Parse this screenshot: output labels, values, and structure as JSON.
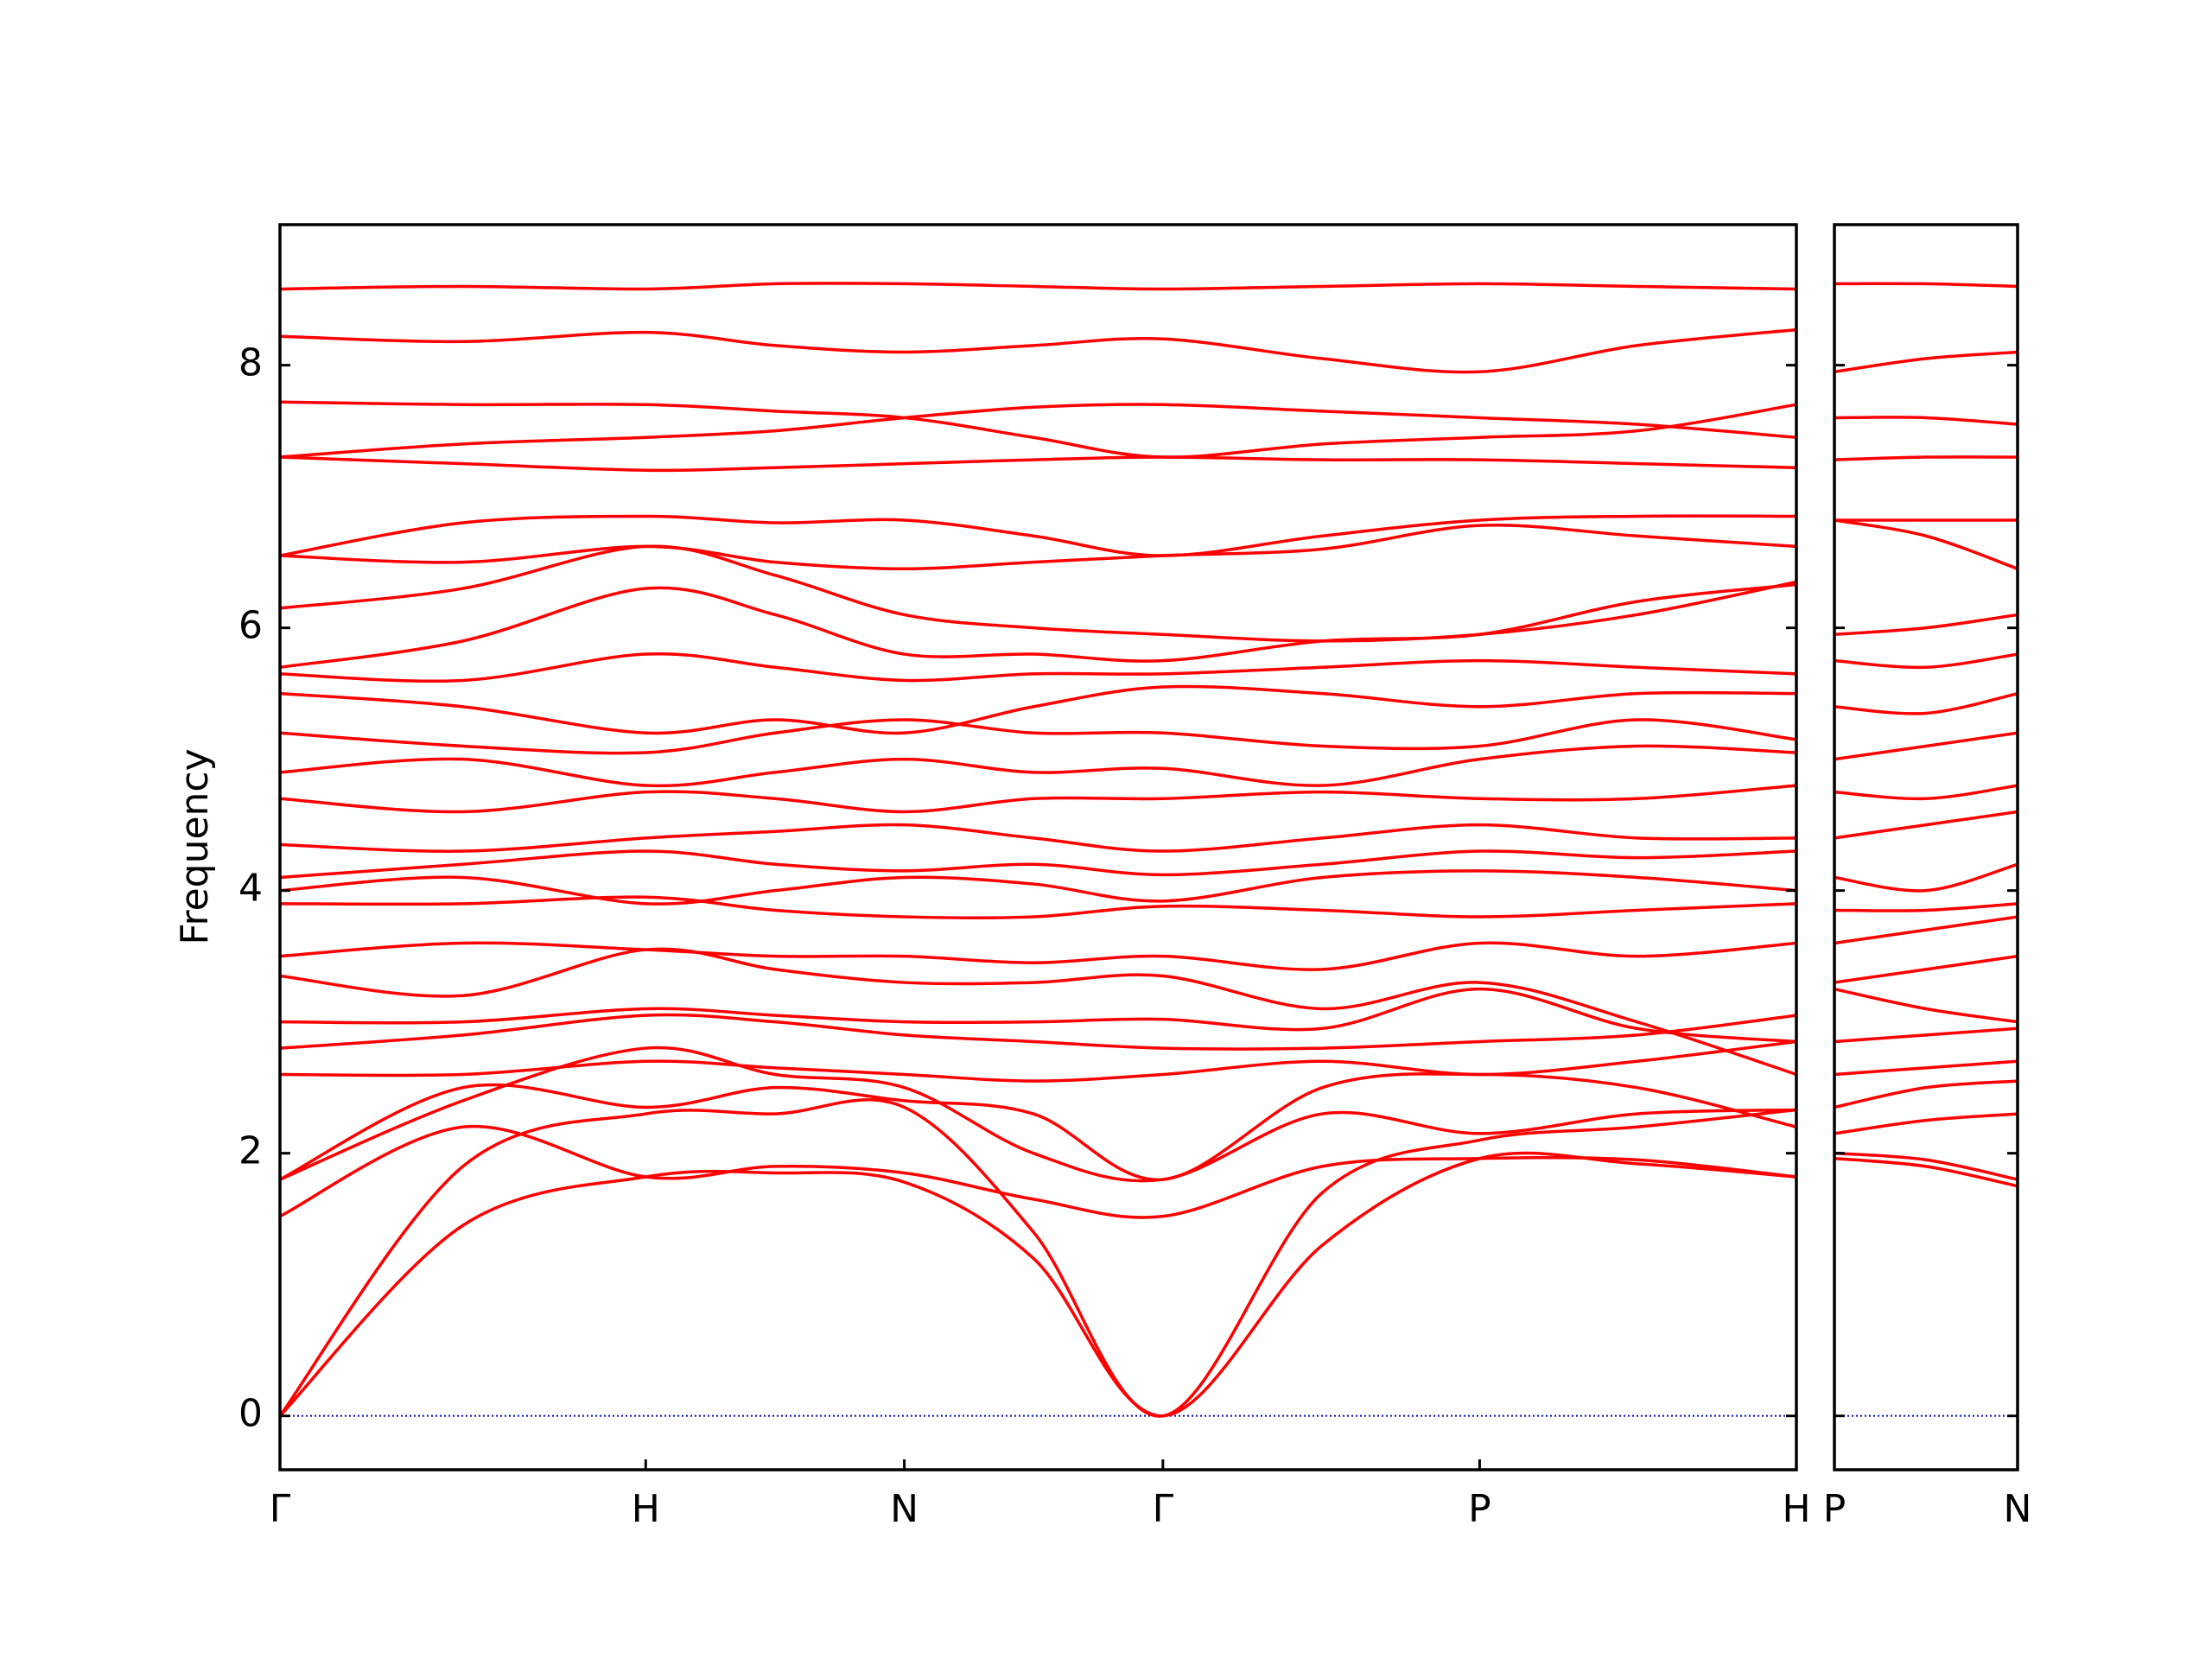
{
  "chart_data": [
    {
      "type": "line",
      "y_label": "Frequency",
      "color": "#ff0000",
      "x": [
        0,
        0.5,
        1,
        1.354,
        1.707,
        2.06,
        2.414,
        2.85,
        3.28,
        3.71,
        4.146
      ],
      "xlim": [
        0,
        4.146
      ],
      "ylim": [
        -0.41,
        9.07
      ],
      "yticks": [
        0,
        2,
        4,
        6,
        8
      ],
      "xticks": [
        {
          "value": 0,
          "label": "Γ"
        },
        {
          "value": 1,
          "label": "H"
        },
        {
          "value": 1.707,
          "label": "N"
        },
        {
          "value": 2.414,
          "label": "Γ"
        },
        {
          "value": 3.28,
          "label": "P"
        },
        {
          "value": 4.146,
          "label": "H"
        }
      ],
      "series": [
        {
          "values": [
            0,
            1.45,
            1.82,
            1.85,
            1.78,
            1.2,
            0,
            1.3,
            1.96,
            1.92,
            1.82
          ]
        },
        {
          "values": [
            0,
            1.9,
            2.3,
            2.3,
            2.35,
            1.4,
            0,
            1.7,
            2.1,
            2.2,
            2.33
          ]
        },
        {
          "values": [
            1.52,
            2.2,
            1.82,
            1.9,
            1.85,
            1.65,
            1.52,
            1.9,
            1.96,
            1.95,
            1.82
          ]
        },
        {
          "values": [
            1.8,
            2.4,
            2.8,
            2.6,
            2.5,
            2.0,
            1.8,
            2.3,
            2.15,
            2.3,
            2.33
          ]
        },
        {
          "values": [
            1.8,
            2.5,
            2.35,
            2.5,
            2.4,
            2.3,
            1.8,
            2.5,
            2.6,
            2.5,
            2.2
          ]
        },
        {
          "values": [
            2.6,
            2.6,
            2.7,
            2.65,
            2.6,
            2.55,
            2.6,
            2.7,
            2.6,
            2.7,
            2.85
          ]
        },
        {
          "values": [
            2.8,
            2.9,
            3.05,
            3.0,
            2.9,
            2.85,
            2.8,
            2.8,
            2.85,
            2.9,
            3.05
          ]
        },
        {
          "values": [
            3.0,
            3.0,
            3.1,
            3.05,
            3.0,
            3.0,
            3.02,
            2.95,
            3.25,
            2.95,
            2.85
          ]
        },
        {
          "values": [
            3.35,
            3.2,
            3.55,
            3.4,
            3.3,
            3.3,
            3.35,
            3.1,
            3.3,
            3.0,
            2.6
          ]
        },
        {
          "values": [
            3.5,
            3.6,
            3.55,
            3.5,
            3.5,
            3.45,
            3.5,
            3.4,
            3.6,
            3.5,
            3.6
          ]
        },
        {
          "values": [
            3.9,
            3.9,
            3.95,
            3.85,
            3.8,
            3.8,
            3.88,
            3.85,
            3.8,
            3.85,
            3.9
          ]
        },
        {
          "values": [
            4.0,
            4.1,
            3.9,
            4.0,
            4.1,
            4.05,
            3.92,
            4.1,
            4.15,
            4.1,
            4.0
          ]
        },
        {
          "values": [
            4.1,
            4.2,
            4.3,
            4.2,
            4.15,
            4.2,
            4.12,
            4.2,
            4.3,
            4.25,
            4.3
          ]
        },
        {
          "values": [
            4.35,
            4.3,
            4.4,
            4.45,
            4.5,
            4.4,
            4.3,
            4.4,
            4.5,
            4.4,
            4.4
          ]
        },
        {
          "values": [
            4.7,
            4.6,
            4.75,
            4.7,
            4.6,
            4.7,
            4.7,
            4.75,
            4.7,
            4.7,
            4.8
          ]
        },
        {
          "values": [
            4.9,
            5.0,
            4.8,
            4.9,
            5.0,
            4.9,
            4.93,
            4.8,
            5.0,
            5.1,
            5.05
          ]
        },
        {
          "values": [
            5.2,
            5.1,
            5.05,
            5.2,
            5.3,
            5.2,
            5.2,
            5.1,
            5.1,
            5.3,
            5.15
          ]
        },
        {
          "values": [
            5.5,
            5.4,
            5.2,
            5.3,
            5.2,
            5.4,
            5.55,
            5.5,
            5.4,
            5.5,
            5.5
          ]
        },
        {
          "values": [
            5.65,
            5.6,
            5.8,
            5.7,
            5.6,
            5.65,
            5.65,
            5.7,
            5.75,
            5.7,
            5.65
          ]
        },
        {
          "values": [
            5.7,
            5.9,
            6.3,
            6.1,
            5.8,
            5.8,
            5.75,
            5.9,
            5.95,
            6.2,
            6.33
          ]
        },
        {
          "values": [
            6.15,
            6.3,
            6.62,
            6.4,
            6.1,
            6.0,
            5.95,
            5.9,
            5.95,
            6.1,
            6.35
          ]
        },
        {
          "values": [
            6.55,
            6.5,
            6.62,
            6.5,
            6.45,
            6.5,
            6.55,
            6.6,
            6.78,
            6.7,
            6.62
          ]
        },
        {
          "values": [
            6.55,
            6.8,
            6.85,
            6.8,
            6.82,
            6.7,
            6.55,
            6.7,
            6.82,
            6.85,
            6.85
          ]
        },
        {
          "values": [
            7.3,
            7.25,
            7.2,
            7.22,
            7.25,
            7.28,
            7.3,
            7.28,
            7.28,
            7.25,
            7.22
          ]
        },
        {
          "values": [
            7.3,
            7.4,
            7.45,
            7.5,
            7.6,
            7.68,
            7.7,
            7.65,
            7.6,
            7.55,
            7.45
          ]
        },
        {
          "values": [
            7.72,
            7.7,
            7.7,
            7.65,
            7.6,
            7.45,
            7.3,
            7.4,
            7.45,
            7.5,
            7.7
          ]
        },
        {
          "values": [
            8.22,
            8.18,
            8.25,
            8.15,
            8.1,
            8.15,
            8.2,
            8.05,
            7.95,
            8.15,
            8.27
          ]
        },
        {
          "values": [
            8.58,
            8.6,
            8.58,
            8.62,
            8.62,
            8.6,
            8.58,
            8.6,
            8.62,
            8.6,
            8.58
          ]
        }
      ]
    },
    {
      "type": "line",
      "color": "#ff0000",
      "x": [
        0,
        0.25,
        0.5
      ],
      "xlim": [
        0,
        0.5
      ],
      "ylim": [
        -0.41,
        9.07
      ],
      "yticks": [
        0,
        2,
        4,
        6,
        8
      ],
      "xticks": [
        {
          "value": 0,
          "label": "P"
        },
        {
          "value": 0.5,
          "label": "N"
        }
      ],
      "series": [
        {
          "values": [
            1.96,
            1.9,
            1.75
          ]
        },
        {
          "values": [
            2.0,
            1.95,
            1.8
          ]
        },
        {
          "values": [
            2.15,
            2.25,
            2.3
          ]
        },
        {
          "values": [
            2.35,
            2.5,
            2.55
          ]
        },
        {
          "values": [
            2.6,
            2.65,
            2.7
          ]
        },
        {
          "values": [
            2.85,
            2.9,
            2.95
          ]
        },
        {
          "values": [
            3.25,
            3.1,
            3.0
          ]
        },
        {
          "values": [
            3.3,
            3.4,
            3.5
          ]
        },
        {
          "values": [
            3.6,
            3.7,
            3.8
          ]
        },
        {
          "values": [
            3.85,
            3.85,
            3.9
          ]
        },
        {
          "values": [
            4.1,
            4.0,
            4.2
          ]
        },
        {
          "values": [
            4.4,
            4.5,
            4.6
          ]
        },
        {
          "values": [
            4.75,
            4.7,
            4.8
          ]
        },
        {
          "values": [
            5.0,
            5.1,
            5.2
          ]
        },
        {
          "values": [
            5.4,
            5.35,
            5.5
          ]
        },
        {
          "values": [
            5.75,
            5.7,
            5.8
          ]
        },
        {
          "values": [
            5.95,
            6.0,
            6.1
          ]
        },
        {
          "values": [
            6.82,
            6.7,
            6.45
          ]
        },
        {
          "values": [
            6.82,
            6.82,
            6.82
          ]
        },
        {
          "values": [
            7.28,
            7.3,
            7.3
          ]
        },
        {
          "values": [
            7.6,
            7.6,
            7.55
          ]
        },
        {
          "values": [
            7.95,
            8.05,
            8.1
          ]
        },
        {
          "values": [
            8.62,
            8.62,
            8.6
          ]
        }
      ]
    }
  ]
}
